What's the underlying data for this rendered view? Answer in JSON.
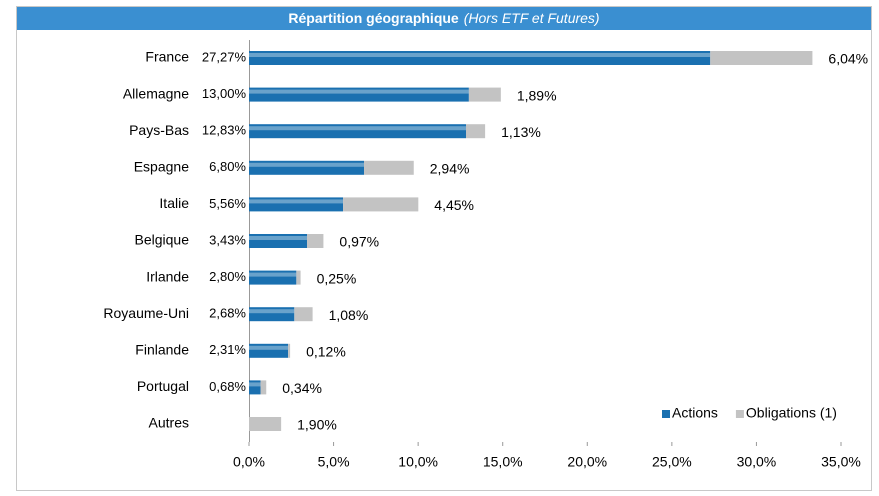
{
  "chart_data": {
    "type": "stacked-barh",
    "title": "Répartition géographique",
    "subtitle": "(Hors ETF et Futures)",
    "categories": [
      "France",
      "Allemagne",
      "Pays-Bas",
      "Espagne",
      "Italie",
      "Belgique",
      "Irlande",
      "Royaume-Uni",
      "Finlande",
      "Portugal",
      "Autres"
    ],
    "series": [
      {
        "name": "Actions",
        "color": "#1a70b0",
        "values": [
          27.27,
          13.0,
          12.83,
          6.8,
          5.56,
          3.43,
          2.8,
          2.68,
          2.31,
          0.68,
          null
        ],
        "value_labels": [
          "27,27%",
          "13,00%",
          "12,83%",
          "6,80%",
          "5,56%",
          "3,43%",
          "2,80%",
          "2,68%",
          "2,31%",
          "0,68%",
          null
        ]
      },
      {
        "name": "Obligations (1)",
        "color": "#c3c3c3",
        "values": [
          6.04,
          1.89,
          1.13,
          2.94,
          4.45,
          0.97,
          0.25,
          1.08,
          0.12,
          0.34,
          1.9
        ],
        "value_labels": [
          "6,04%",
          "1,89%",
          "1,13%",
          "2,94%",
          "4,45%",
          "0,97%",
          "0,25%",
          "1,08%",
          "0,12%",
          "0,34%",
          "1,90%"
        ]
      }
    ],
    "xlim": [
      0,
      35
    ],
    "xticks": [
      {
        "value": 0,
        "label": "0,0%"
      },
      {
        "value": 5,
        "label": "5,0%"
      },
      {
        "value": 10,
        "label": "10,0%"
      },
      {
        "value": 15,
        "label": "15,0%"
      },
      {
        "value": 20,
        "label": "20,0%"
      },
      {
        "value": 25,
        "label": "25,0%"
      },
      {
        "value": 30,
        "label": "30,0%"
      },
      {
        "value": 35,
        "label": "35,0%"
      }
    ],
    "legend": "lower right"
  }
}
